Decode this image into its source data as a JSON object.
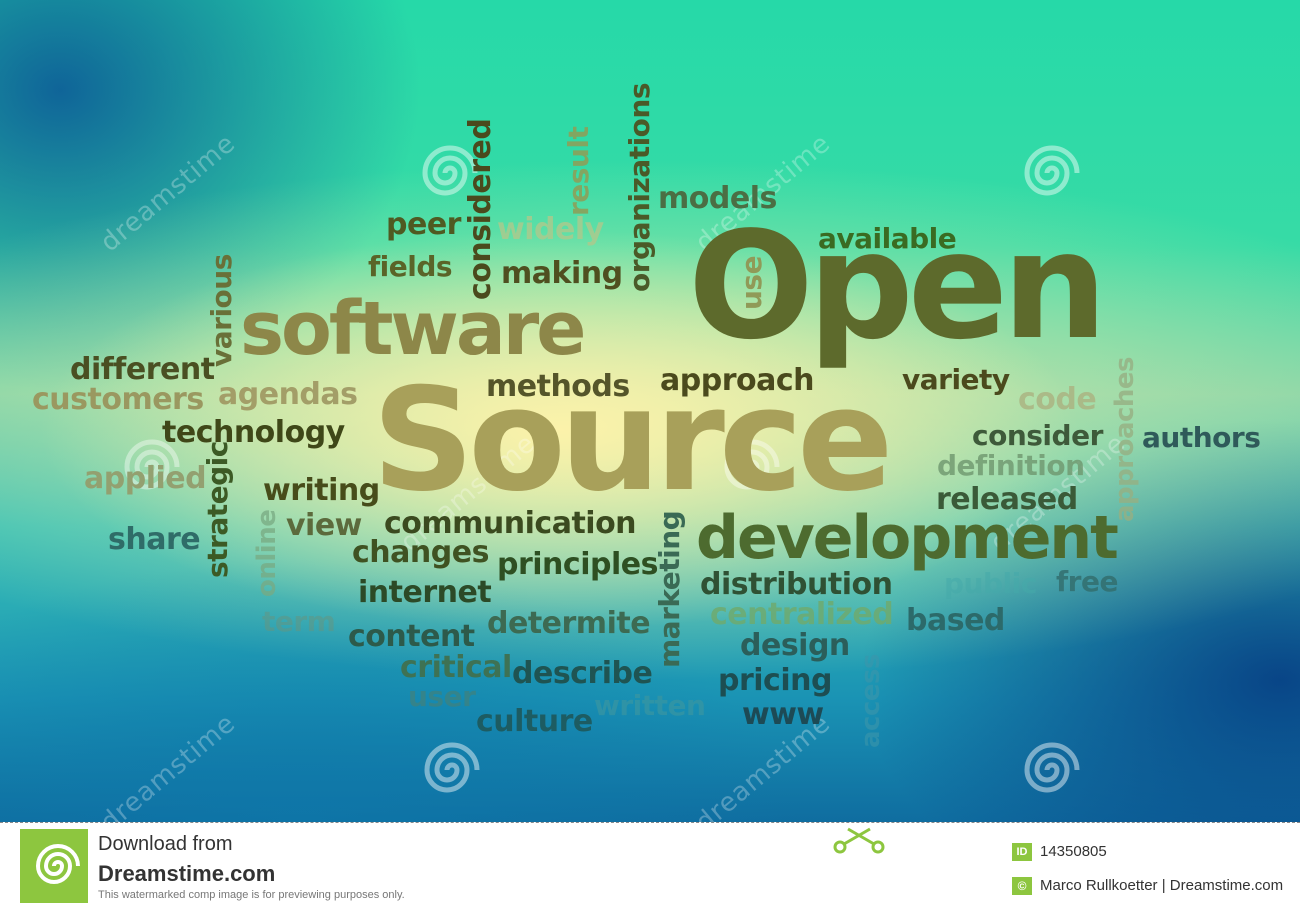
{
  "words": {
    "open": "Open",
    "source": "Source",
    "software": "software",
    "development": "development",
    "peer": "peer",
    "widely": "widely",
    "models": "models",
    "available": "available",
    "fields": "fields",
    "making": "making",
    "different": "different",
    "customers": "customers",
    "agendas": "agendas",
    "technology": "technology",
    "applied": "applied",
    "share": "share",
    "writing": "writing",
    "view": "view",
    "methods": "methods",
    "approach": "approach",
    "variety": "variety",
    "code": "code",
    "consider": "consider",
    "authors": "authors",
    "definition": "definition",
    "released": "released",
    "communication": "communication",
    "changes": "changes",
    "principles": "principles",
    "internet": "internet",
    "distribution": "distribution",
    "centralized": "centralized",
    "free": "free",
    "public": "public",
    "based": "based",
    "term": "term",
    "content": "content",
    "determite": "determite",
    "design": "design",
    "critical": "critical",
    "describe": "describe",
    "pricing": "pricing",
    "user": "user",
    "culture": "culture",
    "written": "written",
    "www": "www",
    "considered": "considered",
    "result": "result",
    "organizations": "organizations",
    "use": "use",
    "various": "various",
    "strategic": "strategic",
    "online": "online",
    "marketing": "marketing",
    "approaches": "approaches",
    "access": "access"
  },
  "watermark": {
    "text": "dreamstime"
  },
  "footer": {
    "download_line": "Download from",
    "site": "Dreamstime.com",
    "disclaimer": "This watermarked comp image is for previewing purposes only.",
    "id_badge": "ID",
    "id_value": "14350805",
    "copyright_badge": "©",
    "credit": "Marco Rullkoetter | Dreamstime.com"
  },
  "colors": {
    "olive_dark": "#4f6128",
    "olive_mid": "#7d7a3c",
    "tan": "#a89a58",
    "green": "#3d6e2d",
    "teal_dark": "#1f5f5c",
    "footer_green": "#8dc63f"
  }
}
